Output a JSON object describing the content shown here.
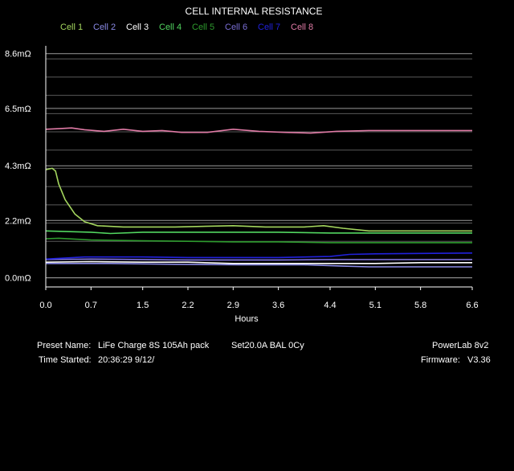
{
  "chart_data": {
    "type": "line",
    "title": "CELL INTERNAL RESISTANCE",
    "xlabel": "Hours",
    "ylabel": "",
    "xlim": [
      0.0,
      6.6
    ],
    "ylim": [
      -0.35,
      8.9
    ],
    "x_ticks": [
      "0.0",
      "0.7",
      "1.5",
      "2.2",
      "2.9",
      "3.6",
      "4.4",
      "5.1",
      "5.8",
      "6.6"
    ],
    "y_ticks": [
      {
        "value": 0.0,
        "label": "0.0mΩ"
      },
      {
        "value": 2.2,
        "label": "2.2mΩ"
      },
      {
        "value": 4.3,
        "label": "4.3mΩ"
      },
      {
        "value": 6.5,
        "label": "6.5mΩ"
      },
      {
        "value": 8.6,
        "label": "8.6mΩ"
      }
    ],
    "grid": true,
    "legend_position": "top",
    "series": [
      {
        "name": "Cell 1",
        "color": "#a4d65e",
        "points": [
          [
            0.0,
            4.15
          ],
          [
            0.1,
            4.2
          ],
          [
            0.15,
            4.1
          ],
          [
            0.2,
            3.6
          ],
          [
            0.3,
            3.0
          ],
          [
            0.45,
            2.45
          ],
          [
            0.6,
            2.15
          ],
          [
            0.8,
            2.0
          ],
          [
            1.2,
            1.95
          ],
          [
            2.0,
            1.95
          ],
          [
            2.9,
            2.0
          ],
          [
            3.4,
            1.95
          ],
          [
            4.0,
            1.95
          ],
          [
            4.3,
            2.0
          ],
          [
            4.6,
            1.9
          ],
          [
            5.0,
            1.8
          ],
          [
            6.6,
            1.8
          ]
        ]
      },
      {
        "name": "Cell 2",
        "color": "#8a8ae6",
        "points": [
          [
            0.0,
            0.55
          ],
          [
            1.0,
            0.55
          ],
          [
            2.0,
            0.52
          ],
          [
            3.0,
            0.5
          ],
          [
            4.0,
            0.5
          ],
          [
            4.6,
            0.45
          ],
          [
            5.0,
            0.42
          ],
          [
            6.0,
            0.42
          ],
          [
            6.6,
            0.42
          ]
        ]
      },
      {
        "name": "Cell 3",
        "color": "#ffffff",
        "points": [
          [
            0.0,
            0.6
          ],
          [
            0.7,
            0.62
          ],
          [
            1.5,
            0.6
          ],
          [
            2.2,
            0.6
          ],
          [
            2.9,
            0.55
          ],
          [
            3.6,
            0.55
          ],
          [
            4.4,
            0.55
          ],
          [
            5.1,
            0.55
          ],
          [
            5.8,
            0.58
          ],
          [
            6.6,
            0.58
          ]
        ]
      },
      {
        "name": "Cell 4",
        "color": "#52d660",
        "points": [
          [
            0.0,
            1.8
          ],
          [
            0.7,
            1.75
          ],
          [
            1.0,
            1.7
          ],
          [
            1.5,
            1.75
          ],
          [
            2.2,
            1.75
          ],
          [
            2.9,
            1.75
          ],
          [
            3.6,
            1.75
          ],
          [
            4.4,
            1.72
          ],
          [
            5.1,
            1.72
          ],
          [
            6.6,
            1.72
          ]
        ]
      },
      {
        "name": "Cell 5",
        "color": "#2e9c2e",
        "points": [
          [
            0.0,
            1.5
          ],
          [
            0.2,
            1.52
          ],
          [
            0.7,
            1.45
          ],
          [
            1.5,
            1.42
          ],
          [
            2.2,
            1.4
          ],
          [
            2.9,
            1.38
          ],
          [
            3.6,
            1.38
          ],
          [
            4.4,
            1.35
          ],
          [
            5.1,
            1.35
          ],
          [
            6.6,
            1.35
          ]
        ]
      },
      {
        "name": "Cell 6",
        "color": "#7b6fd6",
        "points": [
          [
            0.0,
            0.7
          ],
          [
            0.7,
            0.72
          ],
          [
            1.5,
            0.7
          ],
          [
            2.2,
            0.68
          ],
          [
            2.9,
            0.68
          ],
          [
            3.6,
            0.68
          ],
          [
            4.4,
            0.7
          ],
          [
            5.1,
            0.7
          ],
          [
            6.6,
            0.7
          ]
        ]
      },
      {
        "name": "Cell 7",
        "color": "#2121dd",
        "points": [
          [
            0.0,
            0.72
          ],
          [
            0.6,
            0.8
          ],
          [
            1.5,
            0.8
          ],
          [
            2.2,
            0.78
          ],
          [
            2.9,
            0.78
          ],
          [
            3.6,
            0.78
          ],
          [
            4.4,
            0.82
          ],
          [
            4.7,
            0.9
          ],
          [
            5.1,
            0.92
          ],
          [
            6.6,
            0.95
          ]
        ]
      },
      {
        "name": "Cell 8",
        "color": "#e07ba6",
        "points": [
          [
            0.0,
            5.7
          ],
          [
            0.2,
            5.72
          ],
          [
            0.4,
            5.75
          ],
          [
            0.6,
            5.68
          ],
          [
            0.9,
            5.62
          ],
          [
            1.2,
            5.7
          ],
          [
            1.5,
            5.62
          ],
          [
            1.8,
            5.65
          ],
          [
            2.1,
            5.58
          ],
          [
            2.5,
            5.58
          ],
          [
            2.9,
            5.7
          ],
          [
            3.3,
            5.62
          ],
          [
            3.7,
            5.58
          ],
          [
            4.1,
            5.55
          ],
          [
            4.5,
            5.62
          ],
          [
            5.0,
            5.65
          ],
          [
            5.5,
            5.65
          ],
          [
            6.0,
            5.65
          ],
          [
            6.6,
            5.65
          ]
        ]
      }
    ]
  },
  "info": {
    "preset_label": "Preset Name:",
    "preset_value": "LiFe Charge 8S 105Ah pack",
    "preset_settings": "Set20.0A BAL 0Cy",
    "time_label": "Time Started:",
    "time_value": "20:36:29  9/12/",
    "device": "PowerLab 8v2",
    "firmware_label": "Firmware:",
    "firmware_value": "V3.36"
  }
}
